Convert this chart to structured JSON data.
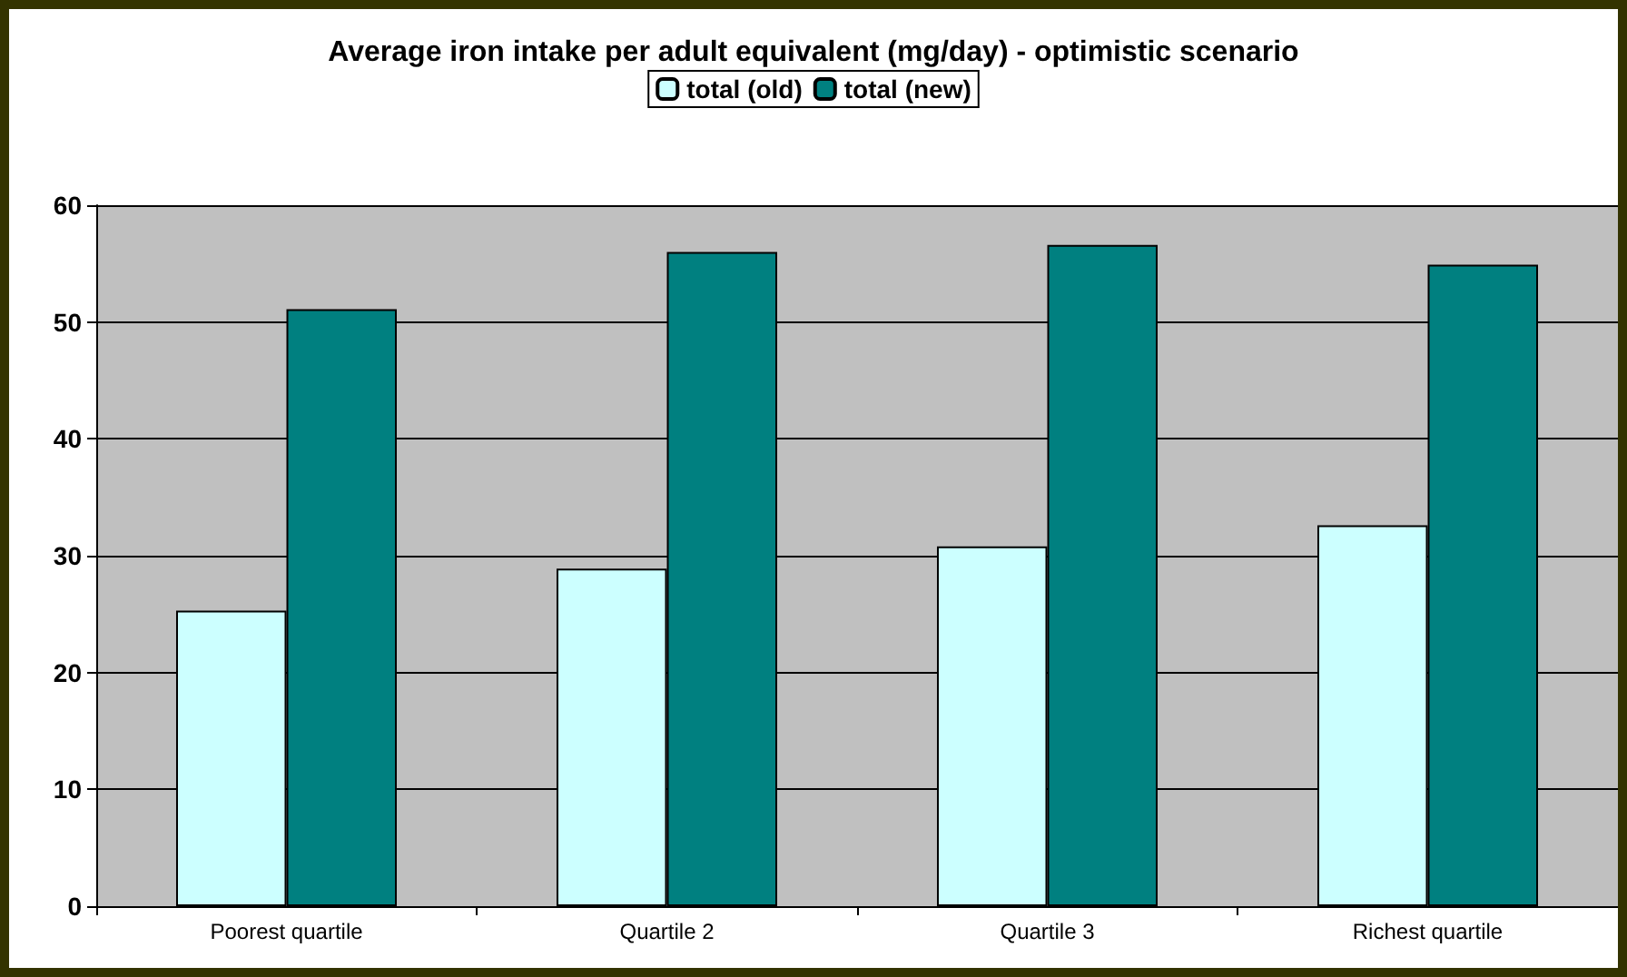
{
  "chart_data": {
    "type": "bar",
    "title": "Average iron intake per adult equivalent (mg/day) - optimistic scenario",
    "categories": [
      "Poorest quartile",
      "Quartile 2",
      "Quartile 3",
      "Richest quartile"
    ],
    "series": [
      {
        "name": "total (old)",
        "color": "#ccffff",
        "values": [
          25.3,
          28.9,
          30.8,
          32.6
        ]
      },
      {
        "name": "total (new)",
        "color": "#008080",
        "values": [
          51.1,
          56.0,
          56.6,
          54.9
        ]
      }
    ],
    "ylim": [
      0,
      60
    ],
    "yticks": [
      0,
      10,
      20,
      30,
      40,
      50,
      60
    ],
    "grid": "y",
    "legend": "top"
  }
}
